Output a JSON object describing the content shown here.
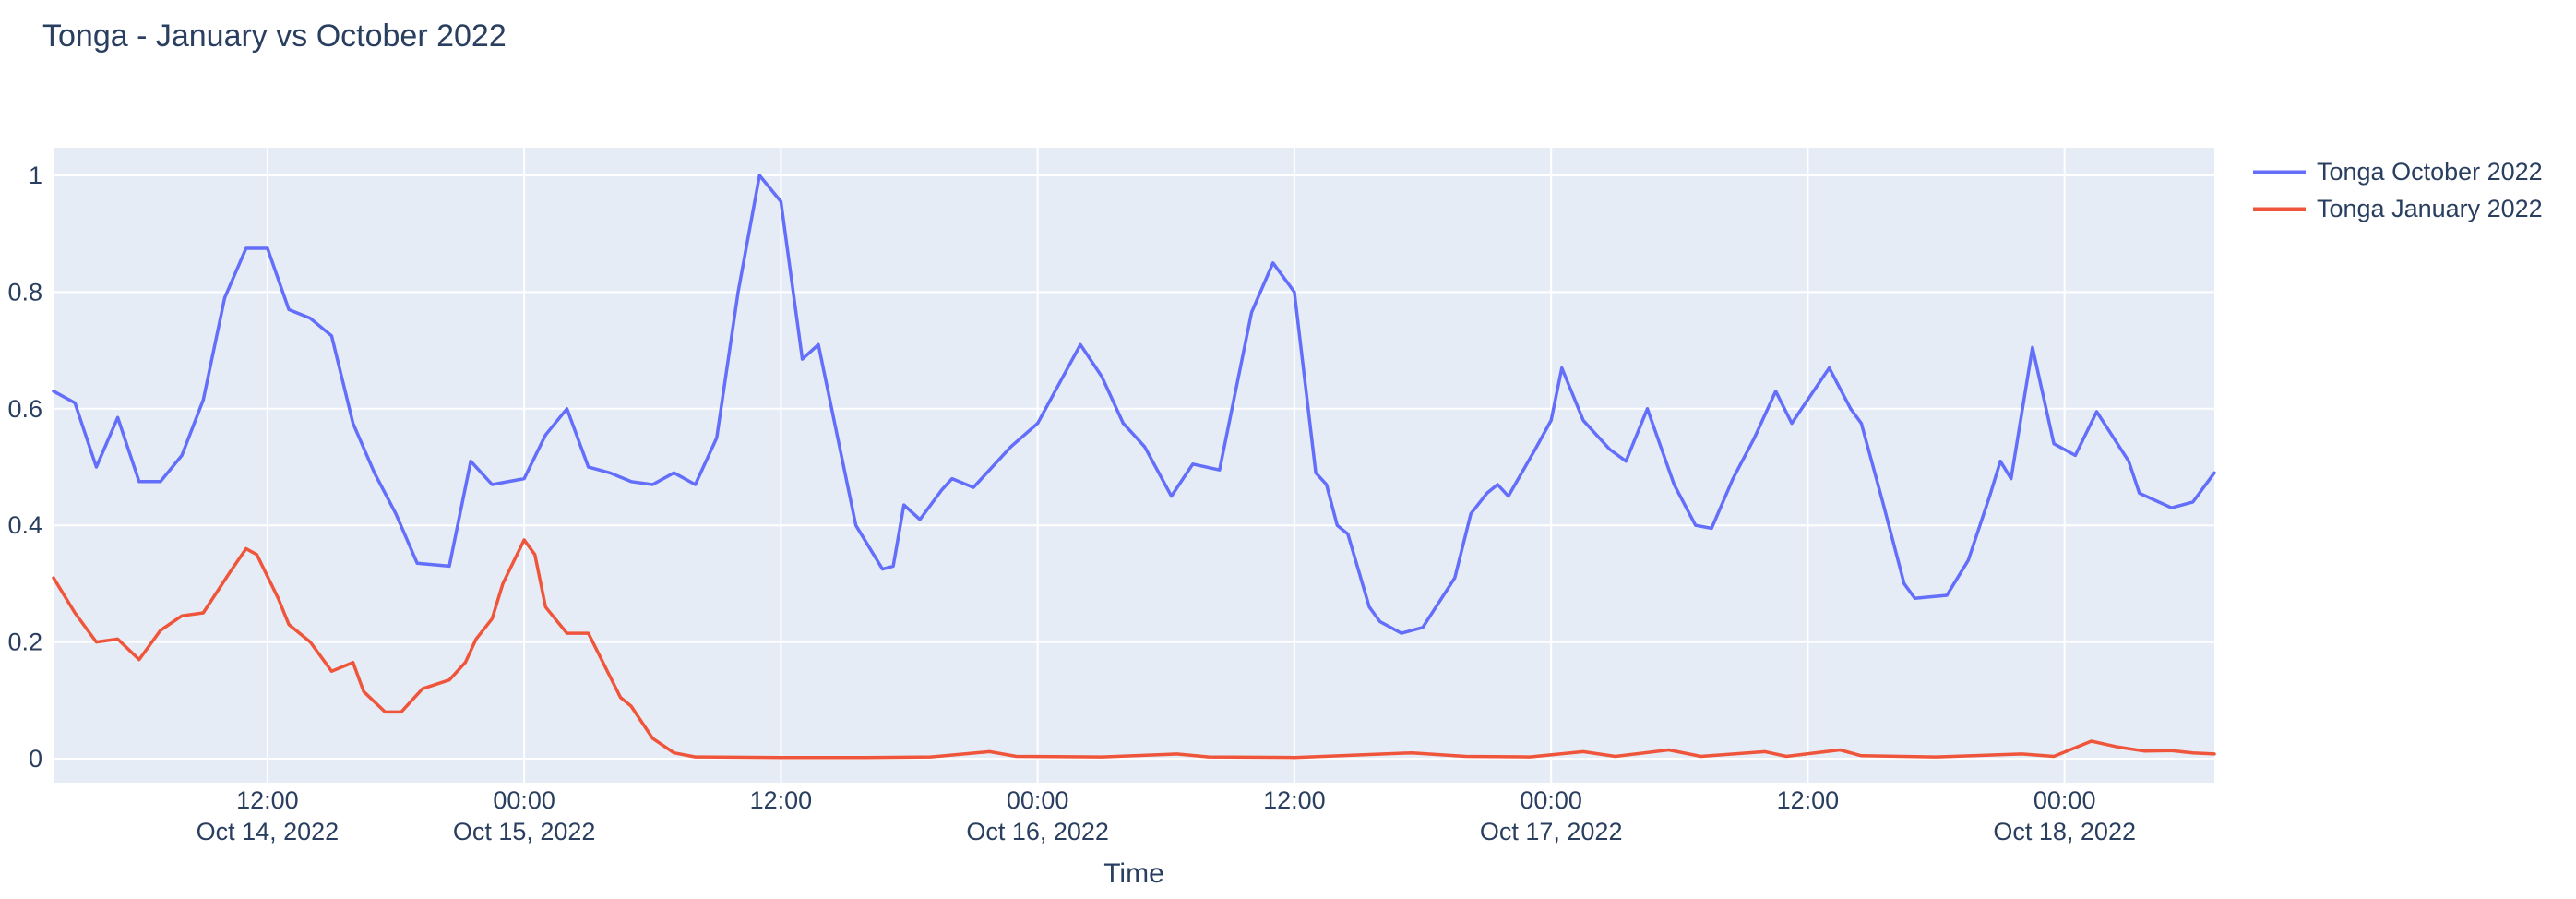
{
  "title": "Tonga - January vs October 2022",
  "chart_data": {
    "type": "line",
    "title": "Tonga - January vs October 2022",
    "xlabel": "Time",
    "ylabel": "",
    "grid": true,
    "plot_bg_color": "#e5ecf6",
    "grid_color": "#ffffff",
    "text_color": "#2a3f5f",
    "legend_position": "top-right-outside",
    "x_range_hours_from_oct14": [
      2,
      103
    ],
    "ylim": [
      -0.08,
      1.05
    ],
    "y_ticks": [
      {
        "v": 0,
        "label": "0"
      },
      {
        "v": 0.2,
        "label": "0.2"
      },
      {
        "v": 0.4,
        "label": "0.4"
      },
      {
        "v": 0.6,
        "label": "0.6"
      },
      {
        "v": 0.8,
        "label": "0.8"
      },
      {
        "v": 1,
        "label": "1"
      }
    ],
    "x_ticks": [
      {
        "hour": 12,
        "label": "12:00",
        "date": "Oct 14, 2022"
      },
      {
        "hour": 24,
        "label": "00:00",
        "date": "Oct 15, 2022"
      },
      {
        "hour": 36,
        "label": "12:00",
        "date": ""
      },
      {
        "hour": 48,
        "label": "00:00",
        "date": "Oct 16, 2022"
      },
      {
        "hour": 60,
        "label": "12:00",
        "date": ""
      },
      {
        "hour": 72,
        "label": "00:00",
        "date": "Oct 17, 2022"
      },
      {
        "hour": 84,
        "label": "12:00",
        "date": ""
      },
      {
        "hour": 96,
        "label": "00:00",
        "date": "Oct 18, 2022"
      }
    ],
    "series": [
      {
        "name": "Tonga October 2022",
        "color": "#636efa",
        "points": [
          [
            "2022-10-14 02:00",
            0.63
          ],
          [
            "2022-10-14 03:00",
            0.61
          ],
          [
            "2022-10-14 04:00",
            0.5
          ],
          [
            "2022-10-14 05:00",
            0.585
          ],
          [
            "2022-10-14 06:00",
            0.475
          ],
          [
            "2022-10-14 07:00",
            0.475
          ],
          [
            "2022-10-14 08:00",
            0.52
          ],
          [
            "2022-10-14 09:00",
            0.615
          ],
          [
            "2022-10-14 10:00",
            0.79
          ],
          [
            "2022-10-14 11:00",
            0.875
          ],
          [
            "2022-10-14 12:00",
            0.875
          ],
          [
            "2022-10-14 13:00",
            0.77
          ],
          [
            "2022-10-14 14:00",
            0.755
          ],
          [
            "2022-10-14 15:00",
            0.725
          ],
          [
            "2022-10-14 16:00",
            0.575
          ],
          [
            "2022-10-14 17:00",
            0.49
          ],
          [
            "2022-10-14 18:00",
            0.42
          ],
          [
            "2022-10-14 19:00",
            0.335
          ],
          [
            "2022-10-14 20:30",
            0.33
          ],
          [
            "2022-10-14 21:30",
            0.51
          ],
          [
            "2022-10-14 22:30",
            0.47
          ],
          [
            "2022-10-15 00:00",
            0.48
          ],
          [
            "2022-10-15 01:00",
            0.555
          ],
          [
            "2022-10-15 02:00",
            0.6
          ],
          [
            "2022-10-15 03:00",
            0.5
          ],
          [
            "2022-10-15 04:00",
            0.49
          ],
          [
            "2022-10-15 05:00",
            0.475
          ],
          [
            "2022-10-15 06:00",
            0.47
          ],
          [
            "2022-10-15 07:00",
            0.49
          ],
          [
            "2022-10-15 08:00",
            0.47
          ],
          [
            "2022-10-15 09:00",
            0.55
          ],
          [
            "2022-10-15 10:00",
            0.8
          ],
          [
            "2022-10-15 11:00",
            1.0
          ],
          [
            "2022-10-15 12:00",
            0.955
          ],
          [
            "2022-10-15 13:00",
            0.685
          ],
          [
            "2022-10-15 13:45",
            0.71
          ],
          [
            "2022-10-15 15:30",
            0.4
          ],
          [
            "2022-10-15 16:45",
            0.325
          ],
          [
            "2022-10-15 17:15",
            0.33
          ],
          [
            "2022-10-15 17:45",
            0.435
          ],
          [
            "2022-10-15 18:30",
            0.41
          ],
          [
            "2022-10-15 19:30",
            0.46
          ],
          [
            "2022-10-15 20:00",
            0.48
          ],
          [
            "2022-10-15 21:00",
            0.465
          ],
          [
            "2022-10-15 22:45",
            0.535
          ],
          [
            "2022-10-16 00:00",
            0.575
          ],
          [
            "2022-10-16 02:00",
            0.71
          ],
          [
            "2022-10-16 03:00",
            0.655
          ],
          [
            "2022-10-16 04:00",
            0.575
          ],
          [
            "2022-10-16 04:30",
            0.555
          ],
          [
            "2022-10-16 05:00",
            0.535
          ],
          [
            "2022-10-16 06:15",
            0.45
          ],
          [
            "2022-10-16 07:15",
            0.505
          ],
          [
            "2022-10-16 08:30",
            0.495
          ],
          [
            "2022-10-16 10:00",
            0.765
          ],
          [
            "2022-10-16 11:00",
            0.85
          ],
          [
            "2022-10-16 12:00",
            0.8
          ],
          [
            "2022-10-16 13:00",
            0.49
          ],
          [
            "2022-10-16 13:30",
            0.47
          ],
          [
            "2022-10-16 14:00",
            0.4
          ],
          [
            "2022-10-16 14:30",
            0.385
          ],
          [
            "2022-10-16 15:30",
            0.26
          ],
          [
            "2022-10-16 16:00",
            0.235
          ],
          [
            "2022-10-16 17:00",
            0.215
          ],
          [
            "2022-10-16 18:00",
            0.225
          ],
          [
            "2022-10-16 19:30",
            0.31
          ],
          [
            "2022-10-16 20:15",
            0.42
          ],
          [
            "2022-10-16 21:00",
            0.455
          ],
          [
            "2022-10-16 21:30",
            0.47
          ],
          [
            "2022-10-16 22:00",
            0.45
          ],
          [
            "2022-10-16 23:15",
            0.53
          ],
          [
            "2022-10-17 00:00",
            0.58
          ],
          [
            "2022-10-17 00:30",
            0.67
          ],
          [
            "2022-10-17 01:30",
            0.58
          ],
          [
            "2022-10-17 02:00",
            0.56
          ],
          [
            "2022-10-17 02:45",
            0.53
          ],
          [
            "2022-10-17 03:30",
            0.51
          ],
          [
            "2022-10-17 04:30",
            0.6
          ],
          [
            "2022-10-17 05:45",
            0.47
          ],
          [
            "2022-10-17 06:45",
            0.4
          ],
          [
            "2022-10-17 07:30",
            0.395
          ],
          [
            "2022-10-17 08:30",
            0.48
          ],
          [
            "2022-10-17 09:30",
            0.55
          ],
          [
            "2022-10-17 10:30",
            0.63
          ],
          [
            "2022-10-17 11:15",
            0.575
          ],
          [
            "2022-10-17 13:00",
            0.67
          ],
          [
            "2022-10-17 14:00",
            0.6
          ],
          [
            "2022-10-17 14:30",
            0.575
          ],
          [
            "2022-10-17 15:30",
            0.44
          ],
          [
            "2022-10-17 16:30",
            0.3
          ],
          [
            "2022-10-17 17:00",
            0.275
          ],
          [
            "2022-10-17 18:30",
            0.28
          ],
          [
            "2022-10-17 19:30",
            0.34
          ],
          [
            "2022-10-17 20:30",
            0.45
          ],
          [
            "2022-10-17 21:00",
            0.51
          ],
          [
            "2022-10-17 21:30",
            0.48
          ],
          [
            "2022-10-17 22:30",
            0.705
          ],
          [
            "2022-10-17 23:30",
            0.54
          ],
          [
            "2022-10-18 00:30",
            0.52
          ],
          [
            "2022-10-18 01:30",
            0.595
          ],
          [
            "2022-10-18 03:00",
            0.51
          ],
          [
            "2022-10-18 03:30",
            0.455
          ],
          [
            "2022-10-18 05:00",
            0.43
          ],
          [
            "2022-10-18 06:00",
            0.44
          ],
          [
            "2022-10-18 07:00",
            0.49
          ]
        ]
      },
      {
        "name": "Tonga January 2022",
        "color": "#ef553b",
        "points": [
          [
            "2022-10-14 02:00",
            0.31
          ],
          [
            "2022-10-14 03:00",
            0.25
          ],
          [
            "2022-10-14 04:00",
            0.2
          ],
          [
            "2022-10-14 05:00",
            0.205
          ],
          [
            "2022-10-14 06:00",
            0.17
          ],
          [
            "2022-10-14 07:00",
            0.22
          ],
          [
            "2022-10-14 08:00",
            0.245
          ],
          [
            "2022-10-14 09:00",
            0.25
          ],
          [
            "2022-10-14 10:15",
            0.32
          ],
          [
            "2022-10-14 11:00",
            0.36
          ],
          [
            "2022-10-14 11:30",
            0.35
          ],
          [
            "2022-10-14 12:30",
            0.275
          ],
          [
            "2022-10-14 13:00",
            0.23
          ],
          [
            "2022-10-14 14:00",
            0.2
          ],
          [
            "2022-10-14 15:00",
            0.15
          ],
          [
            "2022-10-14 16:00",
            0.165
          ],
          [
            "2022-10-14 16:30",
            0.115
          ],
          [
            "2022-10-14 17:30",
            0.08
          ],
          [
            "2022-10-14 18:15",
            0.08
          ],
          [
            "2022-10-14 19:15",
            0.12
          ],
          [
            "2022-10-14 20:30",
            0.135
          ],
          [
            "2022-10-14 21:15",
            0.165
          ],
          [
            "2022-10-14 21:45",
            0.205
          ],
          [
            "2022-10-14 22:30",
            0.24
          ],
          [
            "2022-10-14 23:00",
            0.3
          ],
          [
            "2022-10-15 00:00",
            0.375
          ],
          [
            "2022-10-15 00:30",
            0.35
          ],
          [
            "2022-10-15 01:00",
            0.26
          ],
          [
            "2022-10-15 02:00",
            0.215
          ],
          [
            "2022-10-15 03:00",
            0.215
          ],
          [
            "2022-10-15 04:30",
            0.105
          ],
          [
            "2022-10-15 05:00",
            0.09
          ],
          [
            "2022-10-15 06:00",
            0.035
          ],
          [
            "2022-10-15 07:00",
            0.01
          ],
          [
            "2022-10-15 08:00",
            0.003
          ],
          [
            "2022-10-15 12:00",
            0.002
          ],
          [
            "2022-10-15 16:00",
            0.002
          ],
          [
            "2022-10-15 19:00",
            0.003
          ],
          [
            "2022-10-15 21:45",
            0.012
          ],
          [
            "2022-10-15 23:00",
            0.004
          ],
          [
            "2022-10-16 03:00",
            0.003
          ],
          [
            "2022-10-16 06:30",
            0.008
          ],
          [
            "2022-10-16 08:00",
            0.003
          ],
          [
            "2022-10-16 12:00",
            0.002
          ],
          [
            "2022-10-16 17:30",
            0.01
          ],
          [
            "2022-10-16 20:00",
            0.004
          ],
          [
            "2022-10-16 23:00",
            0.003
          ],
          [
            "2022-10-17 01:30",
            0.012
          ],
          [
            "2022-10-17 03:00",
            0.004
          ],
          [
            "2022-10-17 05:30",
            0.015
          ],
          [
            "2022-10-17 07:00",
            0.004
          ],
          [
            "2022-10-17 10:00",
            0.012
          ],
          [
            "2022-10-17 11:00",
            0.004
          ],
          [
            "2022-10-17 13:30",
            0.015
          ],
          [
            "2022-10-17 14:30",
            0.005
          ],
          [
            "2022-10-17 18:00",
            0.003
          ],
          [
            "2022-10-17 22:00",
            0.008
          ],
          [
            "2022-10-17 23:30",
            0.004
          ],
          [
            "2022-10-18 01:15",
            0.03
          ],
          [
            "2022-10-18 02:30",
            0.02
          ],
          [
            "2022-10-18 03:45",
            0.013
          ],
          [
            "2022-10-18 05:00",
            0.014
          ],
          [
            "2022-10-18 06:00",
            0.01
          ],
          [
            "2022-10-18 07:00",
            0.008
          ]
        ]
      }
    ]
  }
}
